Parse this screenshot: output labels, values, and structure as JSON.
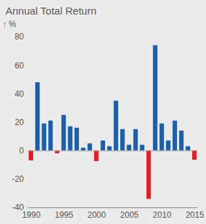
{
  "chart_data": {
    "type": "bar",
    "title": "Annual Total Return",
    "y_label": "%",
    "x": [
      1990,
      1991,
      1992,
      1993,
      1994,
      1995,
      1996,
      1997,
      1998,
      1999,
      2000,
      2001,
      2002,
      2003,
      2004,
      2005,
      2006,
      2007,
      2008,
      2009,
      2010,
      2011,
      2012,
      2013,
      2014,
      2015
    ],
    "values": [
      -7,
      48,
      19,
      21,
      -2,
      25,
      17,
      16,
      2,
      5,
      -7.5,
      7,
      3,
      35,
      15,
      4,
      15,
      4,
      -34,
      74,
      19,
      7,
      21,
      14,
      3,
      -6.5
    ],
    "colors": [
      "#e31f26",
      "#1b5faa",
      "#1b5faa",
      "#1b5faa",
      "#e31f26",
      "#1b5faa",
      "#1b5faa",
      "#1b5faa",
      "#1b5faa",
      "#1b5faa",
      "#e31f26",
      "#1b5faa",
      "#1b5faa",
      "#1b5faa",
      "#1b5faa",
      "#1b5faa",
      "#1b5faa",
      "#1b5faa",
      "#e31f26",
      "#1b5faa",
      "#1b5faa",
      "#1b5faa",
      "#1b5faa",
      "#1b5faa",
      "#1b5faa",
      "#e31f26"
    ],
    "xlim": [
      1989.5,
      2015.5
    ],
    "xticks": [
      1990,
      1995,
      2000,
      2005,
      2010,
      2015
    ],
    "ylim": [
      -40,
      80
    ],
    "yticks": [
      -40,
      -20,
      0,
      20,
      40,
      60,
      80
    ],
    "grid": false
  }
}
